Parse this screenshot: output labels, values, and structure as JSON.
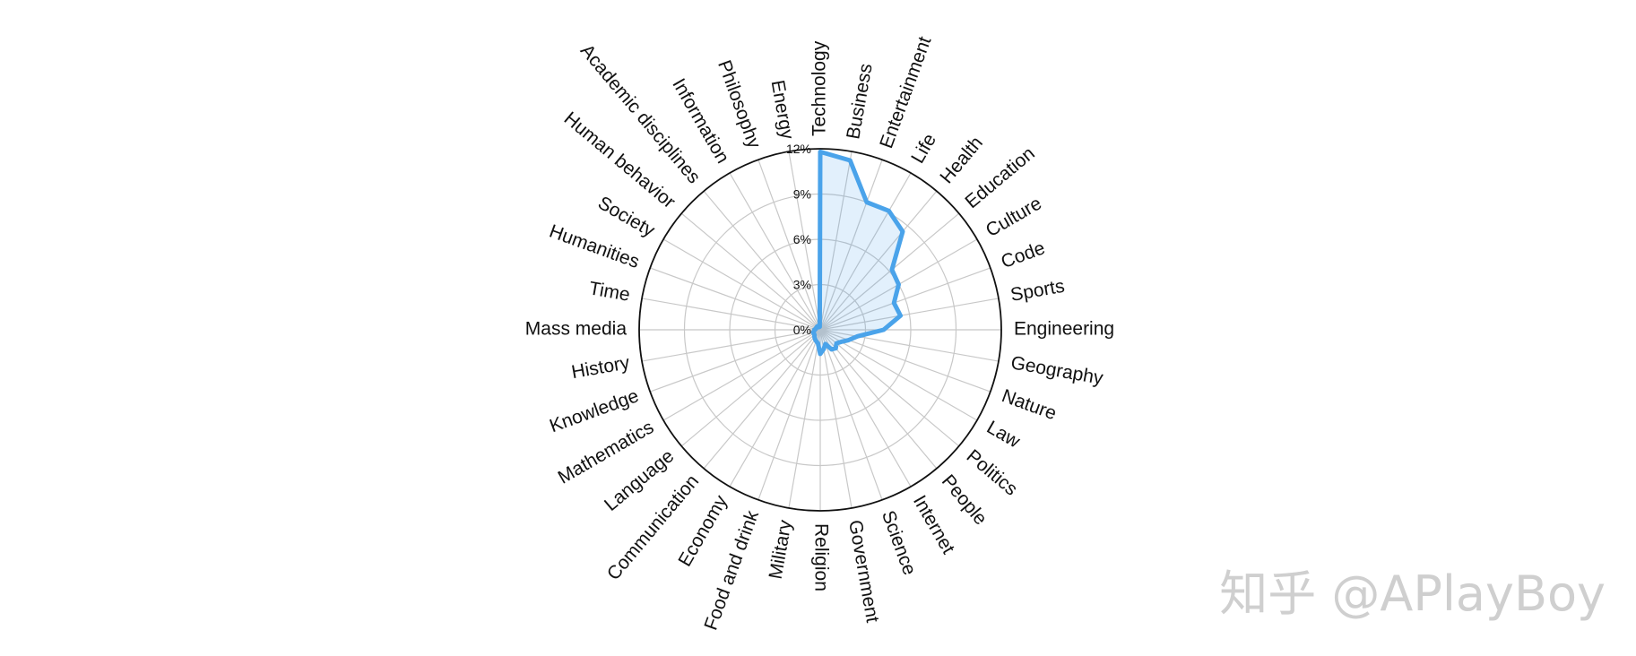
{
  "chart_data": {
    "type": "radar",
    "title": "",
    "categories": [
      "Technology",
      "Business",
      "Entertainment",
      "Life",
      "Health",
      "Education",
      "Culture",
      "Code",
      "Sports",
      "Engineering",
      "Geography",
      "Nature",
      "Law",
      "Politics",
      "People",
      "Internet",
      "Science",
      "Government",
      "Religion",
      "Military",
      "Food and drink",
      "Economy",
      "Communication",
      "Language",
      "Mathematics",
      "Knowledge",
      "History",
      "Mass media",
      "Time",
      "Humanities",
      "Society",
      "Human behavior",
      "Academic disciplines",
      "Information",
      "Philosophy",
      "Energy"
    ],
    "series": [
      {
        "values": [
          11.8,
          11.4,
          9.0,
          9.1,
          8.5,
          6.2,
          6.0,
          5.2,
          5.4,
          4.2,
          2.5,
          2.0,
          1.6,
          1.4,
          1.6,
          1.5,
          1.0,
          1.3,
          1.6,
          0.9,
          0.8,
          0.7,
          0.6,
          0.5,
          0.5,
          0.5,
          0.4,
          0.4,
          0.3,
          0.3,
          0.3,
          0.3,
          0.3,
          0.2,
          0.2,
          0.2
        ]
      }
    ],
    "radial_ticks": [
      "0%",
      "3%",
      "6%",
      "9%",
      "12%"
    ],
    "radial_tick_values": [
      0,
      3,
      6,
      9,
      12
    ],
    "rlim": [
      0,
      12
    ],
    "grid": true,
    "colors": {
      "line": "#4aa3ea",
      "fill": "#4aa3ea",
      "grid": "#c8c8c8",
      "outer": "#111111"
    }
  },
  "watermark": "知乎 @APlayBoy"
}
